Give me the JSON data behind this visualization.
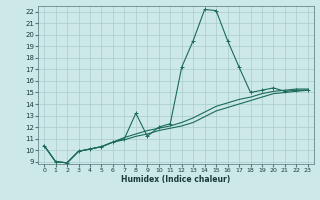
{
  "xlabel": "Humidex (Indice chaleur)",
  "xlim": [
    -0.5,
    23.5
  ],
  "ylim": [
    8.8,
    22.5
  ],
  "xticks": [
    0,
    1,
    2,
    3,
    4,
    5,
    6,
    7,
    8,
    9,
    10,
    11,
    12,
    13,
    14,
    15,
    16,
    17,
    18,
    19,
    20,
    21,
    22,
    23
  ],
  "yticks": [
    9,
    10,
    11,
    12,
    13,
    14,
    15,
    16,
    17,
    18,
    19,
    20,
    21,
    22
  ],
  "bg_color": "#cce8e8",
  "line_color": "#1a6b5a",
  "grid_color": "#aacccc",
  "series1_x": [
    0,
    1,
    2,
    3,
    4,
    5,
    6,
    7,
    8,
    9,
    10,
    11,
    12,
    13,
    14,
    15,
    16,
    17,
    18,
    19,
    20,
    21,
    22,
    23
  ],
  "series1_y": [
    10.4,
    9.0,
    8.9,
    9.9,
    10.1,
    10.3,
    10.7,
    11.0,
    13.2,
    11.2,
    12.0,
    12.3,
    17.2,
    19.5,
    22.2,
    22.1,
    19.5,
    17.2,
    15.0,
    15.2,
    15.4,
    15.1,
    15.2,
    15.2
  ],
  "series2_x": [
    0,
    1,
    2,
    3,
    4,
    5,
    6,
    7,
    8,
    9,
    10,
    11,
    12,
    13,
    14,
    15,
    16,
    17,
    18,
    19,
    20,
    21,
    22,
    23
  ],
  "series2_y": [
    10.4,
    9.0,
    8.9,
    9.9,
    10.1,
    10.3,
    10.7,
    11.1,
    11.4,
    11.7,
    11.9,
    12.1,
    12.4,
    12.8,
    13.3,
    13.8,
    14.1,
    14.4,
    14.6,
    14.9,
    15.1,
    15.2,
    15.3,
    15.3
  ],
  "series3_x": [
    0,
    1,
    2,
    3,
    4,
    5,
    6,
    7,
    8,
    9,
    10,
    11,
    12,
    13,
    14,
    15,
    16,
    17,
    18,
    19,
    20,
    21,
    22,
    23
  ],
  "series3_y": [
    10.4,
    9.0,
    8.9,
    9.9,
    10.1,
    10.3,
    10.7,
    10.9,
    11.2,
    11.4,
    11.7,
    11.9,
    12.1,
    12.4,
    12.9,
    13.4,
    13.7,
    14.0,
    14.3,
    14.6,
    14.9,
    15.0,
    15.1,
    15.2
  ]
}
